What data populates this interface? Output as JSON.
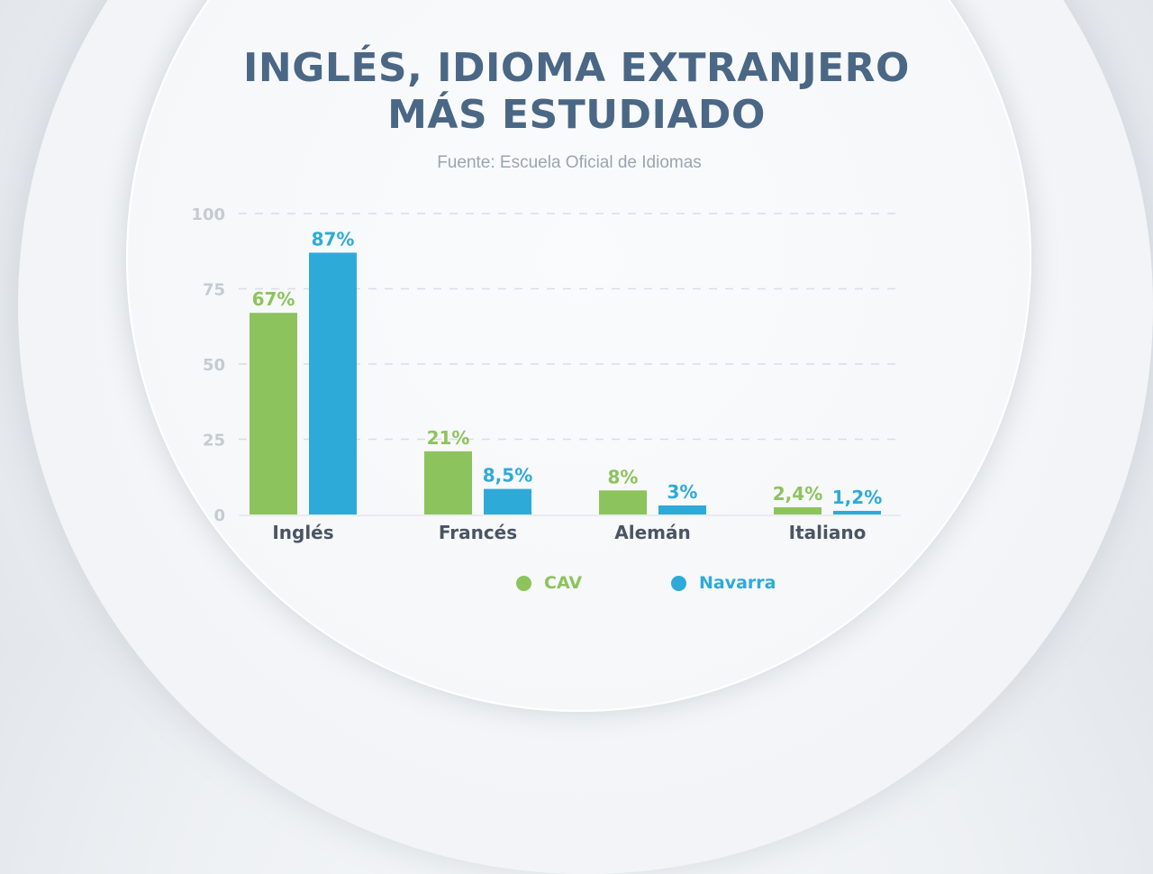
{
  "title_lines": [
    "INGLÉS, IDIOMA EXTRANJERO",
    "MÁS ESTUDIADO"
  ],
  "source": "Fuente: Escuela Oficial de Idiomas",
  "colors": {
    "cav": "#8dc35d",
    "navarra": "#2eaad9",
    "axis_text": "#c5cbd2",
    "category_text": "#4a5563",
    "title": "#4a6785"
  },
  "chart_data": {
    "type": "bar",
    "title": "INGLÉS, IDIOMA EXTRANJERO MÁS ESTUDIADO",
    "subtitle": "Fuente: Escuela Oficial de Idiomas",
    "categories": [
      "Inglés",
      "Francés",
      "Alemán",
      "Italiano"
    ],
    "series": [
      {
        "name": "CAV",
        "color": "#8dc35d",
        "values": [
          67,
          21,
          8,
          2.4
        ],
        "labels": [
          "67%",
          "21%",
          "8%",
          "2,4%"
        ]
      },
      {
        "name": "Navarra",
        "color": "#2eaad9",
        "values": [
          87,
          8.5,
          3,
          1.2
        ],
        "labels": [
          "87%",
          "8,5%",
          "3%",
          "1,2%"
        ]
      }
    ],
    "yticks": [
      "0",
      "25",
      "50",
      "75",
      "100"
    ],
    "ylim": [
      0,
      100
    ],
    "xlabel": "",
    "ylabel": "",
    "grid": "dashed horizontal",
    "legend": "bottom"
  }
}
